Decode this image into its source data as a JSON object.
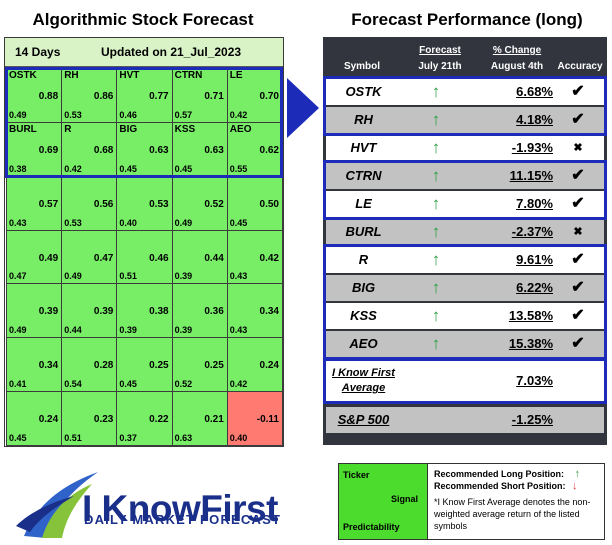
{
  "left_title": "Algorithmic Stock Forecast",
  "right_title": "Forecast Performance (long)",
  "forecast": {
    "period": "14 Days",
    "updated": "Updated on 21_Jul_2023",
    "cells": [
      {
        "symbol": "OSTK",
        "signal": "0.88",
        "predictability": "0.49"
      },
      {
        "symbol": "RH",
        "signal": "0.86",
        "predictability": "0.53"
      },
      {
        "symbol": "HVT",
        "signal": "0.77",
        "predictability": "0.46"
      },
      {
        "symbol": "CTRN",
        "signal": "0.71",
        "predictability": "0.57"
      },
      {
        "symbol": "LE",
        "signal": "0.70",
        "predictability": "0.42"
      },
      {
        "symbol": "BURL",
        "signal": "0.69",
        "predictability": "0.38"
      },
      {
        "symbol": "R",
        "signal": "0.68",
        "predictability": "0.42"
      },
      {
        "symbol": "BIG",
        "signal": "0.63",
        "predictability": "0.45"
      },
      {
        "symbol": "KSS",
        "signal": "0.63",
        "predictability": "0.45"
      },
      {
        "symbol": "AEO",
        "signal": "0.62",
        "predictability": "0.55"
      },
      {
        "symbol": "",
        "signal": "0.57",
        "predictability": "0.43"
      },
      {
        "symbol": "",
        "signal": "0.56",
        "predictability": "0.53"
      },
      {
        "symbol": "",
        "signal": "0.53",
        "predictability": "0.40"
      },
      {
        "symbol": "",
        "signal": "0.52",
        "predictability": "0.49"
      },
      {
        "symbol": "",
        "signal": "0.50",
        "predictability": "0.45"
      },
      {
        "symbol": "",
        "signal": "0.49",
        "predictability": "0.47"
      },
      {
        "symbol": "",
        "signal": "0.47",
        "predictability": "0.49"
      },
      {
        "symbol": "",
        "signal": "0.46",
        "predictability": "0.51"
      },
      {
        "symbol": "",
        "signal": "0.44",
        "predictability": "0.39"
      },
      {
        "symbol": "",
        "signal": "0.42",
        "predictability": "0.43"
      },
      {
        "symbol": "",
        "signal": "0.39",
        "predictability": "0.49"
      },
      {
        "symbol": "",
        "signal": "0.39",
        "predictability": "0.44"
      },
      {
        "symbol": "",
        "signal": "0.38",
        "predictability": "0.39"
      },
      {
        "symbol": "",
        "signal": "0.36",
        "predictability": "0.39"
      },
      {
        "symbol": "",
        "signal": "0.34",
        "predictability": "0.43"
      },
      {
        "symbol": "",
        "signal": "0.34",
        "predictability": "0.41"
      },
      {
        "symbol": "",
        "signal": "0.28",
        "predictability": "0.54"
      },
      {
        "symbol": "",
        "signal": "0.25",
        "predictability": "0.45"
      },
      {
        "symbol": "",
        "signal": "0.25",
        "predictability": "0.52"
      },
      {
        "symbol": "",
        "signal": "0.24",
        "predictability": "0.42"
      },
      {
        "symbol": "",
        "signal": "0.24",
        "predictability": "0.45"
      },
      {
        "symbol": "",
        "signal": "0.23",
        "predictability": "0.51"
      },
      {
        "symbol": "",
        "signal": "0.22",
        "predictability": "0.37"
      },
      {
        "symbol": "",
        "signal": "0.21",
        "predictability": "0.63"
      },
      {
        "symbol": "",
        "signal": "-0.11",
        "predictability": "0.40"
      }
    ]
  },
  "performance": {
    "headers": {
      "symbol": "Symbol",
      "forecast": "Forecast",
      "forecast_date": "July 21th",
      "change": "% Change",
      "change_date": "August 4th",
      "accuracy": "Accuracy"
    },
    "rows": [
      {
        "symbol": "OSTK",
        "direction": "↑",
        "change": "6.68%",
        "accuracy": "✔"
      },
      {
        "symbol": "RH",
        "direction": "↑",
        "change": "4.18%",
        "accuracy": "✔"
      },
      {
        "symbol": "HVT",
        "direction": "↑",
        "change": "-1.93%",
        "accuracy": "✖"
      },
      {
        "symbol": "CTRN",
        "direction": "↑",
        "change": "11.15%",
        "accuracy": "✔"
      },
      {
        "symbol": "LE",
        "direction": "↑",
        "change": "7.80%",
        "accuracy": "✔"
      },
      {
        "symbol": "BURL",
        "direction": "↑",
        "change": "-2.37%",
        "accuracy": "✖"
      },
      {
        "symbol": "R",
        "direction": "↑",
        "change": "9.61%",
        "accuracy": "✔"
      },
      {
        "symbol": "BIG",
        "direction": "↑",
        "change": "6.22%",
        "accuracy": "✔"
      },
      {
        "symbol": "KSS",
        "direction": "↑",
        "change": "13.58%",
        "accuracy": "✔"
      },
      {
        "symbol": "AEO",
        "direction": "↑",
        "change": "15.38%",
        "accuracy": "✔"
      }
    ],
    "average": {
      "label_line1": "I Know First",
      "label_line2": "Average",
      "change": "7.03%"
    },
    "benchmark": {
      "label": "S&P 500",
      "change": "-1.25%"
    }
  },
  "logo": {
    "word": "I KnowFirst",
    "subtitle": "DAILY MARKET FORECAST"
  },
  "legend": {
    "ticker": "Ticker",
    "signal": "Signal",
    "predictability": "Predictability",
    "long": "Recommended Long Position:",
    "long_arrow": "↑",
    "short": "Recommended Short Position:",
    "short_arrow": "↓",
    "note": "*I Know First Average denotes the non-weighted average return of the listed symbols"
  },
  "colors": {
    "positive_cell": "#77ee66",
    "negative_cell": "#ff7b72",
    "highlight": "#1c2bb8",
    "table_bg": "#33353e",
    "up_arrow": "#2ea043",
    "down_arrow": "#e23b3b"
  }
}
